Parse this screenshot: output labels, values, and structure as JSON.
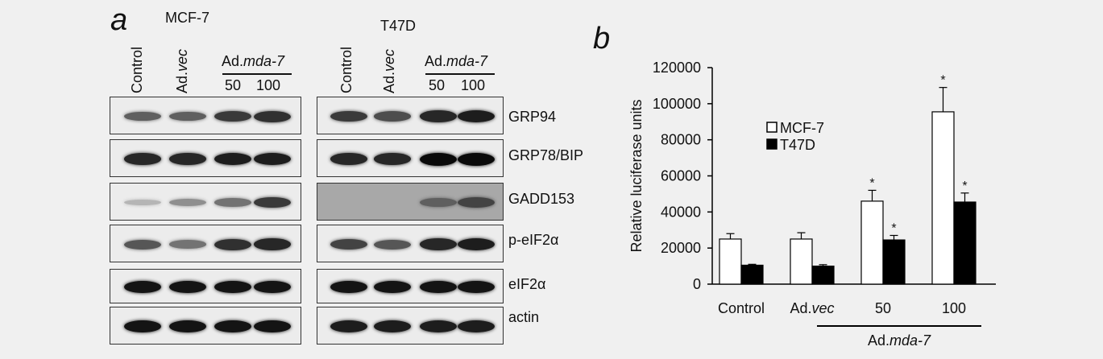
{
  "panel_a": {
    "letter": "a",
    "mcf7": {
      "title": "MCF-7",
      "col1": "Control",
      "col2_prefix": "Ad.",
      "col2_ital": "vec",
      "group_prefix": "Ad.",
      "group_ital": "mda-7",
      "dose1": "50",
      "dose2": "100"
    },
    "t47d": {
      "title": "T47D",
      "col1": "Control",
      "col2_prefix": "Ad.",
      "col2_ital": "vec",
      "group_prefix": "Ad.",
      "group_ital": "mda-7",
      "dose1": "50",
      "dose2": "100"
    },
    "proteins": [
      "GRP94",
      "GRP78/BIP",
      "GADD153",
      "p-eIF2α",
      "eIF2α",
      "actin"
    ],
    "band_intensity": {
      "mcf7": [
        [
          0.55,
          0.55,
          0.75,
          0.8
        ],
        [
          0.85,
          0.85,
          0.9,
          0.9
        ],
        [
          0.1,
          0.3,
          0.45,
          0.75
        ],
        [
          0.6,
          0.45,
          0.8,
          0.85
        ],
        [
          0.95,
          0.95,
          0.95,
          0.95
        ],
        [
          0.95,
          0.95,
          0.95,
          0.95
        ]
      ],
      "t47d": [
        [
          0.75,
          0.65,
          0.85,
          0.9
        ],
        [
          0.85,
          0.85,
          1.0,
          1.0
        ],
        [
          0,
          0,
          0.55,
          0.7
        ],
        [
          0.7,
          0.6,
          0.85,
          0.9
        ],
        [
          0.95,
          0.95,
          0.95,
          0.95
        ],
        [
          0.9,
          0.9,
          0.9,
          0.9
        ]
      ]
    }
  },
  "panel_b": {
    "letter": "b"
  },
  "chart_data": {
    "type": "bar",
    "categories": [
      "Control",
      "Ad.vec",
      "50",
      "100"
    ],
    "category_display": [
      {
        "prefix": "Control",
        "ital": ""
      },
      {
        "prefix": "Ad.",
        "ital": "vec"
      },
      {
        "prefix": "50",
        "ital": ""
      },
      {
        "prefix": "100",
        "ital": ""
      }
    ],
    "group_label": {
      "prefix": "Ad.",
      "ital": "mda-7"
    },
    "series": [
      {
        "name": "MCF-7",
        "values": [
          25000,
          25000,
          46000,
          95500
        ],
        "errors": [
          3000,
          3500,
          6000,
          13500
        ],
        "significant": [
          false,
          false,
          true,
          true
        ],
        "color": "#ffffff"
      },
      {
        "name": "T47D",
        "values": [
          10500,
          10000,
          24500,
          45500
        ],
        "errors": [
          500,
          800,
          2500,
          5000
        ],
        "significant": [
          false,
          false,
          true,
          true
        ],
        "color": "#000000"
      }
    ],
    "ylabel": "Relative luciferase units",
    "xlabel": "",
    "ylim": [
      0,
      120000
    ],
    "yticks": [
      "0",
      "20000",
      "40000",
      "60000",
      "80000",
      "100000",
      "120000"
    ],
    "significance_marker": "*",
    "legend_position": "upper-left"
  }
}
